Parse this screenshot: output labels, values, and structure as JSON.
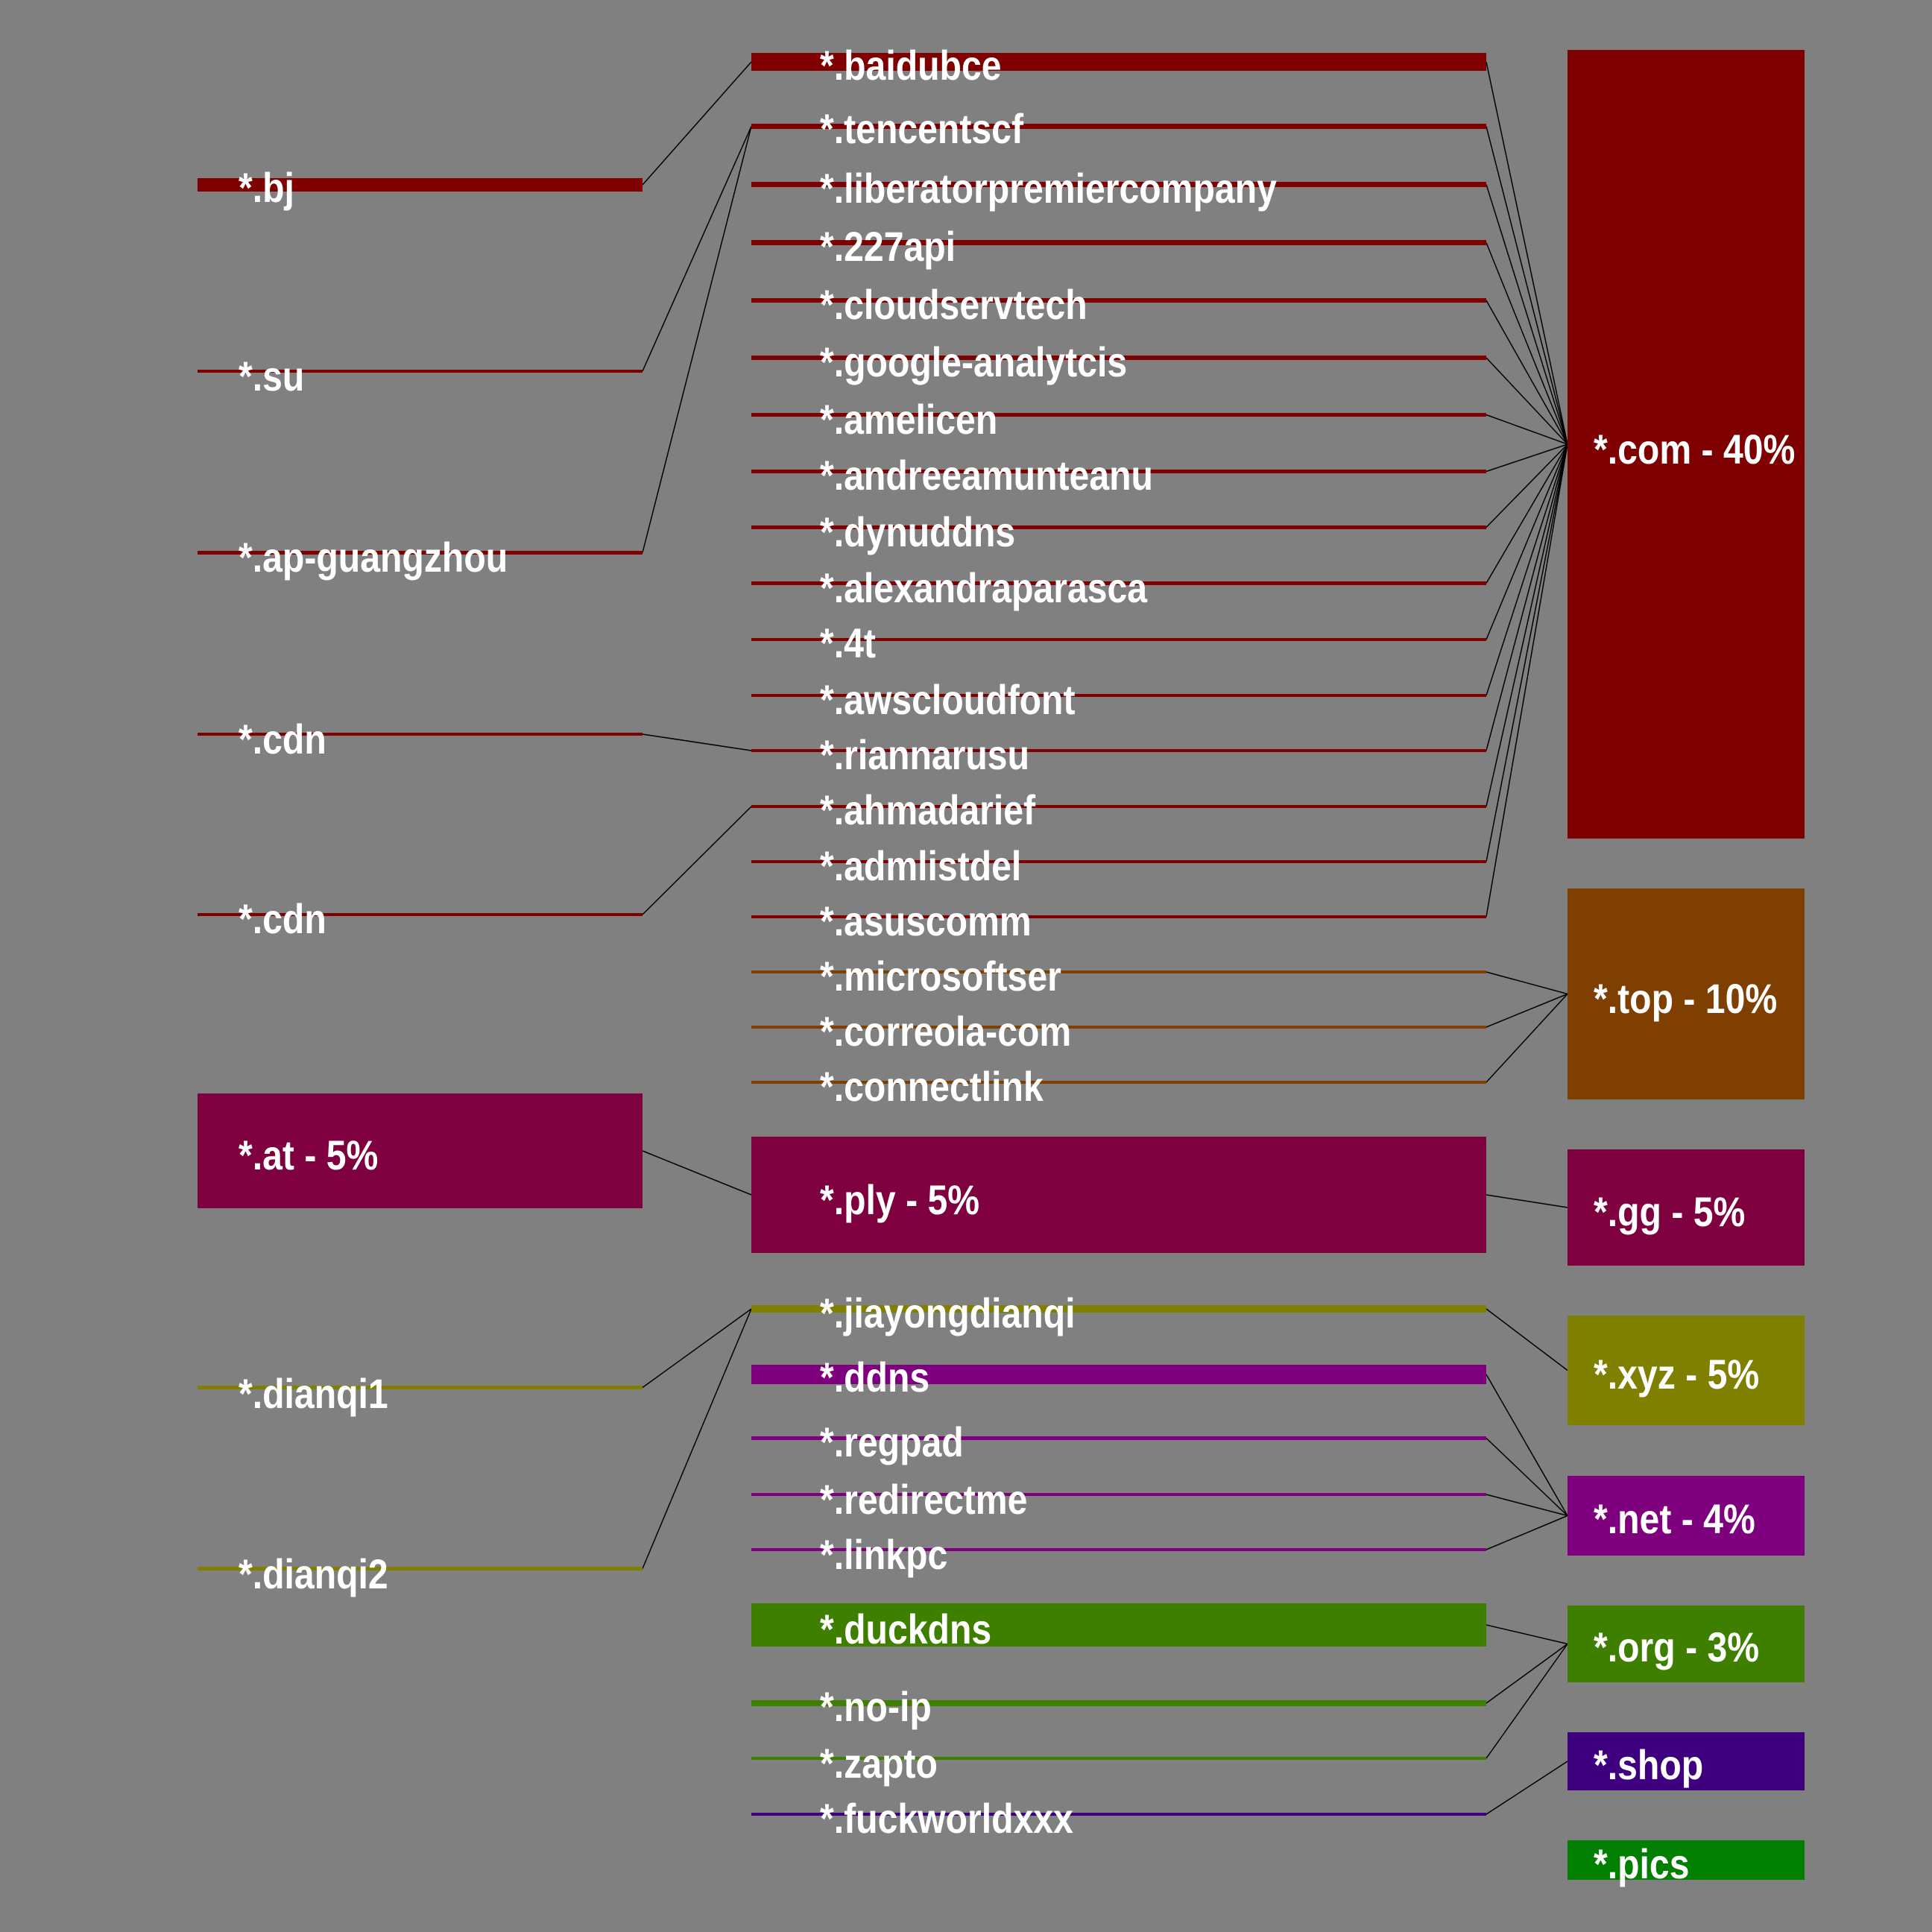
{
  "colors": {
    "background": "#808080",
    "com": "#7f0000",
    "top": "#7f3f00",
    "magenta": "#7f003f",
    "olive": "#7f7f00",
    "purple": "#7f007f",
    "green": "#3f7f00",
    "indigo": "#3f007f",
    "pics": "#007f00",
    "text": "#ffffff",
    "link": "#000000"
  },
  "diagram": {
    "left": [
      {
        "id": "bj",
        "label": "*.bj",
        "color": "com"
      },
      {
        "id": "su",
        "label": "*.su",
        "color": "com"
      },
      {
        "id": "apg",
        "label": "*.ap-guangzhou",
        "color": "com"
      },
      {
        "id": "cdn1",
        "label": "*.cdn",
        "color": "com"
      },
      {
        "id": "cdn2",
        "label": "*.cdn",
        "color": "com"
      },
      {
        "id": "at",
        "label": "*.at - 5%",
        "color": "magenta"
      },
      {
        "id": "d1",
        "label": "*.dianqi1",
        "color": "olive"
      },
      {
        "id": "d2",
        "label": "*.dianqi2",
        "color": "olive"
      }
    ],
    "middle": [
      {
        "id": "baidubce",
        "label": "*.baidubce",
        "color": "com"
      },
      {
        "id": "tencentscf",
        "label": "*.tencentscf",
        "color": "com"
      },
      {
        "id": "liberator",
        "label": "*.liberatorpremiercompany",
        "color": "com"
      },
      {
        "id": "227api",
        "label": "*.227api",
        "color": "com"
      },
      {
        "id": "cloudservtech",
        "label": "*.cloudservtech",
        "color": "com"
      },
      {
        "id": "google",
        "label": "*.google-analytcis",
        "color": "com"
      },
      {
        "id": "amelicen",
        "label": "*.amelicen",
        "color": "com"
      },
      {
        "id": "andreea",
        "label": "*.andreeamunteanu",
        "color": "com"
      },
      {
        "id": "dynuddns",
        "label": "*.dynuddns",
        "color": "com"
      },
      {
        "id": "alexandra",
        "label": "*.alexandraparasca",
        "color": "com"
      },
      {
        "id": "4t",
        "label": "*.4t",
        "color": "com"
      },
      {
        "id": "awscloudfont",
        "label": "*.awscloudfont",
        "color": "com"
      },
      {
        "id": "riannarusu",
        "label": "*.riannarusu",
        "color": "com"
      },
      {
        "id": "ahmadarief",
        "label": "*.ahmadarief",
        "color": "com"
      },
      {
        "id": "admlistdel",
        "label": "*.admlistdel",
        "color": "com"
      },
      {
        "id": "asuscomm",
        "label": "*.asuscomm",
        "color": "com"
      },
      {
        "id": "microsoftser",
        "label": "*.microsoftser",
        "color": "top"
      },
      {
        "id": "correola",
        "label": "*.correola-com",
        "color": "top"
      },
      {
        "id": "connectlink",
        "label": "*.connectlink",
        "color": "top"
      },
      {
        "id": "ply",
        "label": "*.ply - 5%",
        "color": "magenta"
      },
      {
        "id": "jiayong",
        "label": "*.jiayongdianqi",
        "color": "olive"
      },
      {
        "id": "ddns",
        "label": "*.ddns",
        "color": "purple"
      },
      {
        "id": "regpad",
        "label": "*.regpad",
        "color": "purple"
      },
      {
        "id": "redirectme",
        "label": "*.redirectme",
        "color": "purple"
      },
      {
        "id": "linkpc",
        "label": "*.linkpc",
        "color": "purple"
      },
      {
        "id": "duckdns",
        "label": "*.duckdns",
        "color": "green"
      },
      {
        "id": "noip",
        "label": "*.no-ip",
        "color": "green"
      },
      {
        "id": "zapto",
        "label": "*.zapto",
        "color": "green"
      },
      {
        "id": "fuckworld",
        "label": "*.fuckworldxxx",
        "color": "indigo"
      }
    ],
    "right": [
      {
        "id": "com",
        "label": "*.com - 40%",
        "color": "com"
      },
      {
        "id": "top",
        "label": "*.top - 10%",
        "color": "top"
      },
      {
        "id": "gg",
        "label": "*.gg - 5%",
        "color": "magenta"
      },
      {
        "id": "xyz",
        "label": "*.xyz - 5%",
        "color": "olive"
      },
      {
        "id": "net",
        "label": "*.net - 4%",
        "color": "purple"
      },
      {
        "id": "org",
        "label": "*.org - 3%",
        "color": "green"
      },
      {
        "id": "shop",
        "label": "*.shop",
        "color": "indigo"
      },
      {
        "id": "pics",
        "label": "*.pics",
        "color": "pics"
      }
    ],
    "links": [
      [
        "bj",
        "baidubce"
      ],
      [
        "su",
        "tencentscf"
      ],
      [
        "apg",
        "tencentscf"
      ],
      [
        "cdn1",
        "riannarusu"
      ],
      [
        "cdn2",
        "ahmadarief"
      ],
      [
        "at",
        "ply"
      ],
      [
        "d1",
        "jiayong"
      ],
      [
        "d2",
        "jiayong"
      ],
      [
        "baidubce",
        "com"
      ],
      [
        "tencentscf",
        "com"
      ],
      [
        "liberator",
        "com"
      ],
      [
        "227api",
        "com"
      ],
      [
        "cloudservtech",
        "com"
      ],
      [
        "google",
        "com"
      ],
      [
        "amelicen",
        "com"
      ],
      [
        "andreea",
        "com"
      ],
      [
        "dynuddns",
        "com"
      ],
      [
        "alexandra",
        "com"
      ],
      [
        "4t",
        "com"
      ],
      [
        "awscloudfont",
        "com"
      ],
      [
        "riannarusu",
        "com"
      ],
      [
        "ahmadarief",
        "com"
      ],
      [
        "admlistdel",
        "com"
      ],
      [
        "asuscomm",
        "com"
      ],
      [
        "microsoftser",
        "top"
      ],
      [
        "correola",
        "top"
      ],
      [
        "connectlink",
        "top"
      ],
      [
        "ply",
        "gg"
      ],
      [
        "jiayong",
        "xyz"
      ],
      [
        "ddns",
        "net"
      ],
      [
        "regpad",
        "net"
      ],
      [
        "redirectme",
        "net"
      ],
      [
        "linkpc",
        "net"
      ],
      [
        "duckdns",
        "org"
      ],
      [
        "noip",
        "org"
      ],
      [
        "zapto",
        "org"
      ],
      [
        "fuckworld",
        "shop"
      ]
    ]
  }
}
